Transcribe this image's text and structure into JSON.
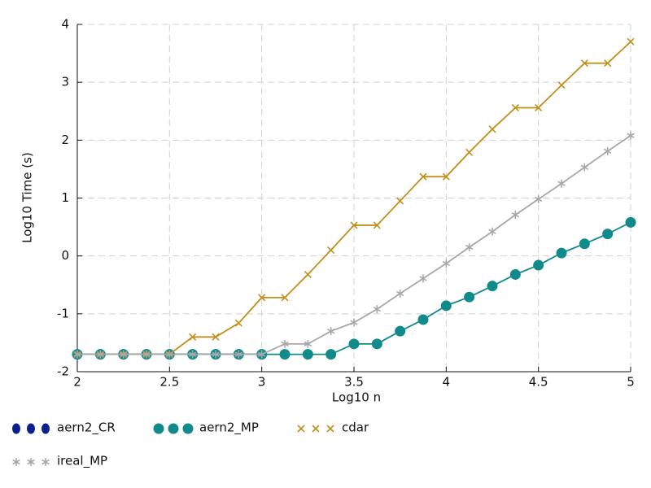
{
  "chart_data": {
    "type": "line",
    "xlabel": "Log10 n",
    "ylabel": "Log10 Time (s)",
    "x": [
      2,
      2.125,
      2.25,
      2.375,
      2.5,
      2.625,
      2.75,
      2.875,
      3,
      3.125,
      3.25,
      3.375,
      3.5,
      3.625,
      3.75,
      3.875,
      4,
      4.125,
      4.25,
      4.375,
      4.5,
      4.625,
      4.75,
      4.875,
      5
    ],
    "xlim": [
      2,
      5
    ],
    "xticks": [
      2,
      2.5,
      3,
      3.5,
      4,
      4.5,
      5
    ],
    "ylim": [
      -2,
      4
    ],
    "yticks": [
      -2,
      -1,
      0,
      1,
      2,
      3,
      4
    ],
    "grid": true,
    "series": [
      {
        "name": "aern2_CR",
        "color": "#0c1f8f",
        "marker": "ellipse",
        "values": [
          -1.7,
          -1.7,
          -1.7,
          -1.7,
          -1.7,
          -1.7,
          -1.7,
          -1.7,
          -1.7,
          null,
          null,
          null,
          null,
          null,
          null,
          null,
          null,
          null,
          null,
          null,
          null,
          null,
          null,
          null,
          null
        ]
      },
      {
        "name": "aern2_MP",
        "color": "#118a8c",
        "marker": "circle",
        "values": [
          -1.7,
          -1.7,
          -1.7,
          -1.7,
          -1.7,
          -1.7,
          -1.7,
          -1.7,
          -1.7,
          -1.7,
          -1.7,
          -1.7,
          -1.52,
          -1.52,
          -1.3,
          -1.1,
          -0.86,
          -0.71,
          -0.52,
          -0.32,
          -0.16,
          0.05,
          0.21,
          0.38,
          0.58
        ]
      },
      {
        "name": "cdar",
        "color": "#c0901a",
        "marker": "cross",
        "values": [
          -1.7,
          -1.7,
          -1.7,
          -1.7,
          -1.7,
          -1.4,
          -1.4,
          -1.16,
          -0.72,
          -0.72,
          -0.32,
          0.1,
          0.53,
          0.53,
          0.95,
          1.37,
          1.37,
          1.79,
          2.19,
          2.56,
          2.56,
          2.95,
          3.33,
          3.33,
          3.7
        ]
      },
      {
        "name": "ireal_MP",
        "color": "#a8a8a8",
        "marker": "star",
        "values": [
          -1.7,
          -1.7,
          -1.7,
          -1.7,
          -1.7,
          -1.7,
          -1.7,
          -1.7,
          -1.7,
          -1.52,
          -1.52,
          -1.3,
          -1.15,
          -0.92,
          -0.65,
          -0.39,
          -0.13,
          0.15,
          0.42,
          0.71,
          0.98,
          1.25,
          1.53,
          1.81,
          2.08
        ]
      }
    ]
  }
}
